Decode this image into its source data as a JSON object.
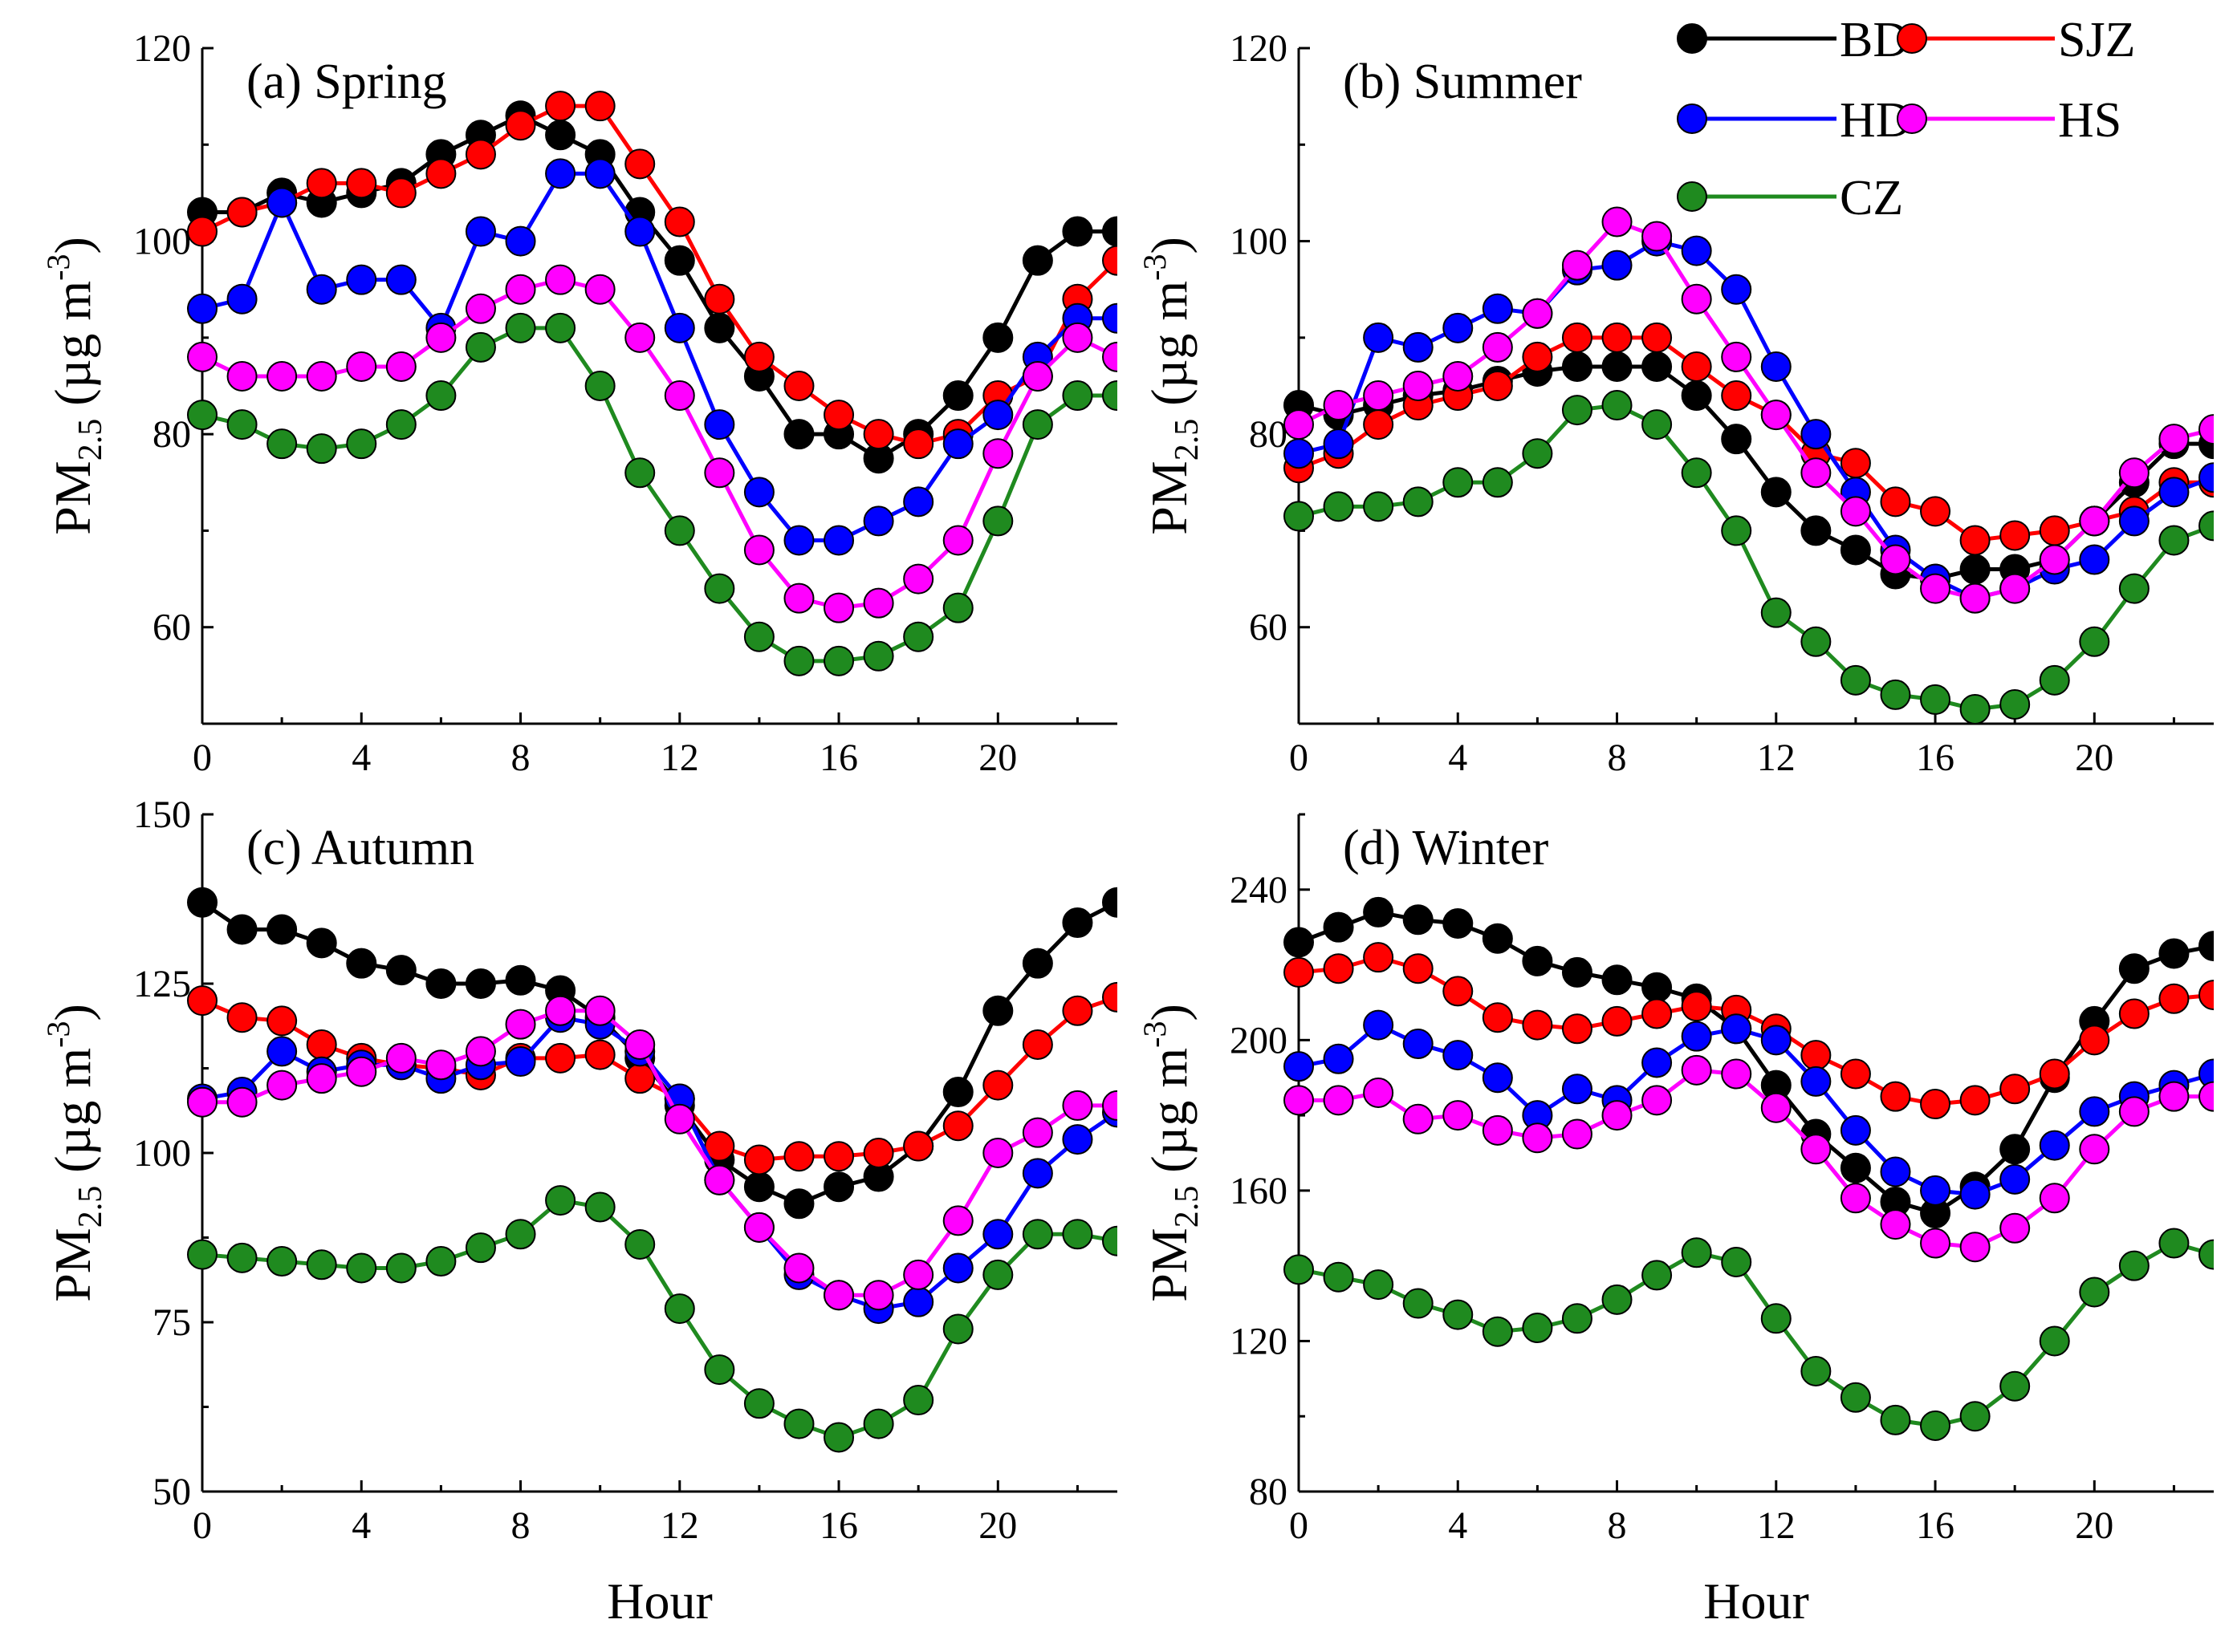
{
  "xlabel": "Hour",
  "ylabel": {
    "main": "PM",
    "sub": "2.5",
    "unit_open": " (µg m",
    "unit_sup": "-3",
    "unit_close": ")"
  },
  "legend": {
    "placement": "top-right"
  },
  "colors": {
    "BD": "#000000",
    "SJZ": "#ff0000",
    "HD": "#0000ff",
    "HS": "#ff00ff",
    "CZ": "#1f8a1f"
  },
  "chart_data": [
    {
      "type": "line",
      "title": "(a) Spring",
      "x": [
        0,
        1,
        2,
        3,
        4,
        5,
        6,
        7,
        8,
        9,
        10,
        11,
        12,
        13,
        14,
        15,
        16,
        17,
        18,
        19,
        20,
        21,
        22,
        23
      ],
      "xlim": [
        0,
        23
      ],
      "xticks": [
        0,
        4,
        8,
        12,
        16,
        20
      ],
      "ylim": [
        50,
        120
      ],
      "yticks": [
        60,
        80,
        100,
        120
      ],
      "series": [
        {
          "name": "BD",
          "values": [
            103,
            103,
            105,
            104,
            105,
            106,
            109,
            111,
            113,
            111,
            109,
            103,
            98,
            91,
            86,
            80,
            80,
            77.5,
            80,
            84,
            90,
            98,
            101,
            101
          ]
        },
        {
          "name": "SJZ",
          "values": [
            101,
            103,
            104,
            106,
            106,
            105,
            107,
            109,
            112,
            114,
            114,
            108,
            102,
            94,
            88,
            85,
            82,
            80,
            79,
            80,
            84,
            86,
            94,
            98
          ]
        },
        {
          "name": "HD",
          "values": [
            93,
            94,
            104,
            95,
            96,
            96,
            91,
            101,
            100,
            107,
            107,
            101,
            91,
            81,
            74,
            69,
            69,
            71,
            73,
            79,
            82,
            88,
            92,
            92
          ]
        },
        {
          "name": "HS",
          "values": [
            88,
            86,
            86,
            86,
            87,
            87,
            90,
            93,
            95,
            96,
            95,
            90,
            84,
            76,
            68,
            63,
            62,
            62.5,
            65,
            69,
            78,
            86,
            90,
            88
          ]
        },
        {
          "name": "CZ",
          "values": [
            82,
            81,
            79,
            78.5,
            79,
            81,
            84,
            89,
            91,
            91,
            85,
            76,
            70,
            64,
            59,
            56.5,
            56.5,
            57,
            59,
            62,
            71,
            81,
            84,
            84
          ]
        }
      ]
    },
    {
      "type": "line",
      "title": "(b) Summer",
      "x": [
        0,
        1,
        2,
        3,
        4,
        5,
        6,
        7,
        8,
        9,
        10,
        11,
        12,
        13,
        14,
        15,
        16,
        17,
        18,
        19,
        20,
        21,
        22,
        23
      ],
      "xlim": [
        0,
        23
      ],
      "xticks": [
        0,
        4,
        8,
        12,
        16,
        20
      ],
      "ylim": [
        50,
        120
      ],
      "yticks": [
        60,
        80,
        100,
        120
      ],
      "series": [
        {
          "name": "BD",
          "values": [
            83,
            82,
            83,
            84,
            84.5,
            85.5,
            86.5,
            87,
            87,
            87,
            84,
            79.5,
            74,
            70,
            68,
            65.5,
            65,
            66,
            66,
            67,
            71,
            75,
            79,
            79
          ]
        },
        {
          "name": "SJZ",
          "values": [
            76.5,
            78,
            81,
            83,
            84,
            85,
            88,
            90,
            90,
            90,
            87,
            84,
            82,
            78,
            77,
            73,
            72,
            69,
            69.5,
            70,
            71,
            72,
            75,
            75
          ]
        },
        {
          "name": "HD",
          "values": [
            78,
            79,
            90,
            89,
            91,
            93,
            92.5,
            97,
            97.5,
            100,
            99,
            95,
            87,
            80,
            74,
            68,
            65,
            63,
            64,
            66,
            67,
            71,
            74,
            75.5
          ]
        },
        {
          "name": "HS",
          "values": [
            81,
            83,
            84,
            85,
            86,
            89,
            92.5,
            97.5,
            102,
            100.5,
            94,
            88,
            82,
            76,
            72,
            67,
            64,
            63,
            64,
            67,
            71,
            76,
            79.5,
            80.5
          ]
        },
        {
          "name": "CZ",
          "values": [
            71.5,
            72.5,
            72.5,
            73,
            75,
            75,
            78,
            82.5,
            83,
            81,
            76,
            70,
            61.5,
            58.5,
            54.5,
            53,
            52.5,
            51.5,
            52,
            54.5,
            58.5,
            64,
            69,
            70.5
          ]
        }
      ]
    },
    {
      "type": "line",
      "title": "(c) Autumn",
      "x": [
        0,
        1,
        2,
        3,
        4,
        5,
        6,
        7,
        8,
        9,
        10,
        11,
        12,
        13,
        14,
        15,
        16,
        17,
        18,
        19,
        20,
        21,
        22,
        23
      ],
      "xlim": [
        0,
        23
      ],
      "xticks": [
        0,
        4,
        8,
        12,
        16,
        20
      ],
      "ylim": [
        50,
        150
      ],
      "yticks": [
        50,
        75,
        100,
        125,
        150
      ],
      "series": [
        {
          "name": "BD",
          "values": [
            137,
            133,
            133,
            131,
            128,
            127,
            125,
            125,
            125.5,
            124,
            120,
            114,
            107,
            99,
            95,
            92.5,
            95,
            96.5,
            101,
            109,
            121,
            128,
            134,
            137
          ]
        },
        {
          "name": "SJZ",
          "values": [
            122.5,
            120,
            119.5,
            116,
            114,
            113,
            112.5,
            111.5,
            114,
            114,
            114.5,
            111,
            108,
            101,
            99,
            99.5,
            99.5,
            100,
            101,
            104,
            110,
            116,
            121,
            123
          ]
        },
        {
          "name": "HD",
          "values": [
            108,
            109,
            115,
            112,
            113,
            113,
            111,
            113,
            113.5,
            120,
            119,
            115,
            108,
            96,
            89,
            82,
            79,
            77,
            78,
            83,
            88,
            97,
            102,
            106
          ]
        },
        {
          "name": "HS",
          "values": [
            107.5,
            107.5,
            110,
            111,
            112,
            114,
            113,
            115,
            119,
            121,
            121,
            116,
            105,
            96,
            89,
            83,
            79,
            79,
            82,
            90,
            100,
            103,
            107,
            107
          ]
        },
        {
          "name": "CZ",
          "values": [
            85,
            84.5,
            84,
            83.5,
            83,
            83,
            84,
            86,
            88,
            93,
            92,
            86.5,
            77,
            68,
            63,
            60,
            58,
            60,
            63.5,
            74,
            82,
            88,
            88,
            87
          ]
        }
      ]
    },
    {
      "type": "line",
      "title": "(d) Winter",
      "x": [
        0,
        1,
        2,
        3,
        4,
        5,
        6,
        7,
        8,
        9,
        10,
        11,
        12,
        13,
        14,
        15,
        16,
        17,
        18,
        19,
        20,
        21,
        22,
        23
      ],
      "xlim": [
        0,
        23
      ],
      "xticks": [
        0,
        4,
        8,
        12,
        16,
        20
      ],
      "ylim": [
        80,
        260
      ],
      "yticks": [
        80,
        120,
        160,
        200,
        240
      ],
      "series": [
        {
          "name": "BD",
          "values": [
            226,
            230,
            234,
            232,
            231,
            227,
            221,
            218,
            216,
            214,
            211,
            203,
            188,
            175,
            166,
            157,
            154,
            161,
            171,
            190,
            205,
            219,
            223,
            225
          ]
        },
        {
          "name": "SJZ",
          "values": [
            218,
            219,
            222,
            219,
            213,
            206,
            204,
            203,
            205,
            207,
            209,
            208,
            203,
            196,
            191,
            185,
            183,
            184,
            187,
            191,
            200,
            207,
            211,
            212
          ]
        },
        {
          "name": "HD",
          "values": [
            193,
            195,
            204,
            199,
            196,
            190,
            180,
            187,
            184,
            194,
            201,
            203,
            200,
            189,
            176,
            165,
            160,
            159,
            163,
            172,
            181,
            185,
            188,
            191
          ]
        },
        {
          "name": "HS",
          "values": [
            184,
            184,
            186,
            179,
            180,
            176,
            174,
            175,
            180,
            184,
            192,
            191,
            182,
            171,
            158,
            151,
            146,
            145,
            150,
            158,
            171,
            181,
            185,
            185
          ]
        },
        {
          "name": "CZ",
          "values": [
            139,
            137,
            135,
            130,
            127,
            122.5,
            123.5,
            126,
            131,
            137.5,
            143.5,
            141,
            126,
            112,
            105,
            99,
            97.5,
            100,
            108,
            120,
            133,
            140,
            146,
            143
          ]
        }
      ]
    }
  ]
}
